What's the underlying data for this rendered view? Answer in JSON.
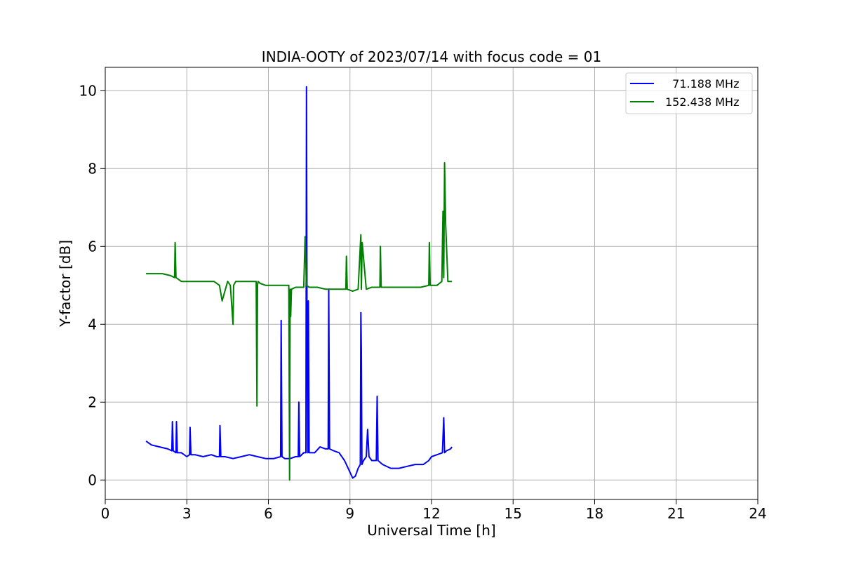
{
  "chart_data": {
    "type": "line",
    "title": "INDIA-OOTY of 2023/07/14 with focus code = 01",
    "xlabel": "Universal Time [h]",
    "ylabel": "Y-factor [dB]",
    "xlim": [
      0,
      24
    ],
    "ylim": [
      -0.5,
      10.6
    ],
    "xticks": [
      0,
      3,
      6,
      9,
      12,
      15,
      18,
      21,
      24
    ],
    "yticks": [
      0,
      2,
      4,
      6,
      8,
      10
    ],
    "xtick_labels": [
      "0",
      "3",
      "6",
      "9",
      "12",
      "15",
      "18",
      "21",
      "24"
    ],
    "ytick_labels": [
      "0",
      "2",
      "4",
      "6",
      "8",
      "10"
    ],
    "grid": true,
    "legend_position": "top-right",
    "series": [
      {
        "name": "  71.188 MHz",
        "color": "#0000ff",
        "x": [
          1.5,
          1.7,
          2.0,
          2.3,
          2.45,
          2.47,
          2.5,
          2.6,
          2.62,
          2.65,
          2.8,
          3.0,
          3.1,
          3.12,
          3.15,
          3.3,
          3.6,
          3.9,
          4.1,
          4.2,
          4.22,
          4.25,
          4.4,
          4.7,
          5.0,
          5.3,
          5.6,
          5.9,
          6.2,
          6.45,
          6.47,
          6.5,
          6.6,
          6.8,
          7.0,
          7.1,
          7.12,
          7.15,
          7.3,
          7.38,
          7.4,
          7.42,
          7.45,
          7.47,
          7.5,
          7.7,
          7.9,
          8.1,
          8.2,
          8.22,
          8.25,
          8.4,
          8.6,
          8.8,
          9.0,
          9.1,
          9.2,
          9.3,
          9.38,
          9.4,
          9.42,
          9.44,
          9.5,
          9.6,
          9.65,
          9.7,
          9.8,
          9.9,
          9.97,
          10.0,
          10.03,
          10.2,
          10.5,
          10.8,
          11.1,
          11.4,
          11.7,
          11.9,
          12.0,
          12.2,
          12.4,
          12.45,
          12.48,
          12.55,
          12.7,
          12.75
        ],
        "y": [
          1.0,
          0.9,
          0.85,
          0.8,
          0.75,
          1.5,
          0.75,
          0.7,
          1.5,
          0.7,
          0.7,
          0.6,
          0.65,
          1.35,
          0.65,
          0.65,
          0.6,
          0.65,
          0.6,
          0.6,
          1.4,
          0.6,
          0.6,
          0.55,
          0.6,
          0.65,
          0.6,
          0.55,
          0.55,
          0.6,
          4.1,
          0.6,
          0.55,
          0.55,
          0.6,
          0.6,
          2.0,
          0.6,
          0.7,
          0.7,
          10.1,
          4.6,
          0.7,
          4.6,
          0.7,
          0.7,
          0.85,
          0.8,
          0.8,
          4.9,
          0.8,
          0.75,
          0.7,
          0.5,
          0.2,
          0.05,
          0.1,
          0.3,
          0.4,
          4.3,
          3.3,
          0.4,
          0.5,
          0.6,
          1.3,
          0.6,
          0.5,
          0.5,
          0.5,
          2.15,
          0.5,
          0.4,
          0.3,
          0.3,
          0.35,
          0.4,
          0.4,
          0.5,
          0.6,
          0.65,
          0.7,
          1.6,
          0.7,
          0.75,
          0.8,
          0.85
        ]
      },
      {
        "name": "152.438 MHz",
        "color": "#008000",
        "x": [
          1.5,
          1.8,
          2.1,
          2.4,
          2.55,
          2.57,
          2.6,
          2.8,
          3.1,
          3.4,
          3.7,
          4.0,
          4.2,
          4.3,
          4.5,
          4.6,
          4.7,
          4.72,
          4.8,
          5.0,
          5.3,
          5.55,
          5.58,
          5.6,
          5.62,
          5.7,
          5.9,
          6.2,
          6.5,
          6.75,
          6.78,
          6.8,
          6.82,
          6.85,
          7.0,
          7.2,
          7.3,
          7.35,
          7.4,
          7.5,
          7.8,
          8.1,
          8.4,
          8.6,
          8.85,
          8.87,
          8.9,
          9.1,
          9.3,
          9.4,
          9.42,
          9.45,
          9.6,
          9.8,
          10.0,
          10.1,
          10.12,
          10.15,
          10.4,
          10.8,
          11.2,
          11.6,
          11.9,
          11.92,
          11.95,
          12.2,
          12.38,
          12.42,
          12.45,
          12.48,
          12.52,
          12.6,
          12.75
        ],
        "y": [
          5.3,
          5.3,
          5.3,
          5.25,
          5.2,
          6.1,
          5.2,
          5.1,
          5.1,
          5.1,
          5.1,
          5.1,
          5.0,
          4.6,
          5.1,
          5.0,
          4.0,
          5.0,
          5.1,
          5.1,
          5.1,
          5.1,
          1.9,
          5.0,
          5.1,
          5.05,
          5.0,
          5.0,
          5.0,
          5.0,
          0.0,
          4.9,
          4.2,
          4.9,
          4.95,
          4.95,
          4.95,
          6.25,
          5.0,
          4.95,
          4.95,
          4.9,
          4.9,
          4.9,
          4.9,
          5.75,
          4.9,
          4.85,
          4.9,
          6.3,
          4.9,
          6.1,
          4.9,
          4.95,
          4.95,
          4.95,
          6.0,
          4.95,
          4.95,
          4.95,
          4.95,
          4.95,
          5.0,
          6.1,
          5.0,
          5.0,
          5.1,
          6.9,
          5.2,
          8.15,
          6.6,
          5.1,
          5.1
        ]
      }
    ]
  }
}
